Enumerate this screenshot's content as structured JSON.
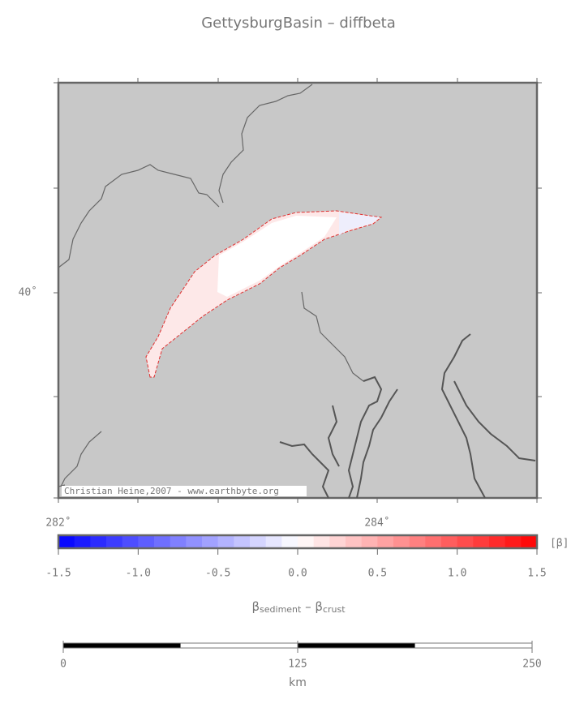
{
  "title": "GettysburgBasin – diffbeta",
  "map": {
    "lat_labels": [
      "40˚"
    ],
    "lon_labels": [
      "282˚",
      "284˚"
    ],
    "credit": "Christian Heine,2007 - www.earthbyte.org"
  },
  "colorbar": {
    "ticks": [
      {
        "value": -1.5,
        "label": "-1.5"
      },
      {
        "value": -1.0,
        "label": "-1.0"
      },
      {
        "value": -0.5,
        "label": "-0.5"
      },
      {
        "value": 0,
        "label": "0.0"
      },
      {
        "value": 0.5,
        "label": "0.5"
      },
      {
        "value": 1.0,
        "label": "1.0"
      },
      {
        "value": 1.5,
        "label": "1.5"
      }
    ],
    "unit": "[β]",
    "label": [
      "β",
      "sediment",
      " – β",
      "crust"
    ]
  },
  "scalebar": {
    "ticks": [
      0,
      125,
      250
    ],
    "unit": "km"
  }
}
